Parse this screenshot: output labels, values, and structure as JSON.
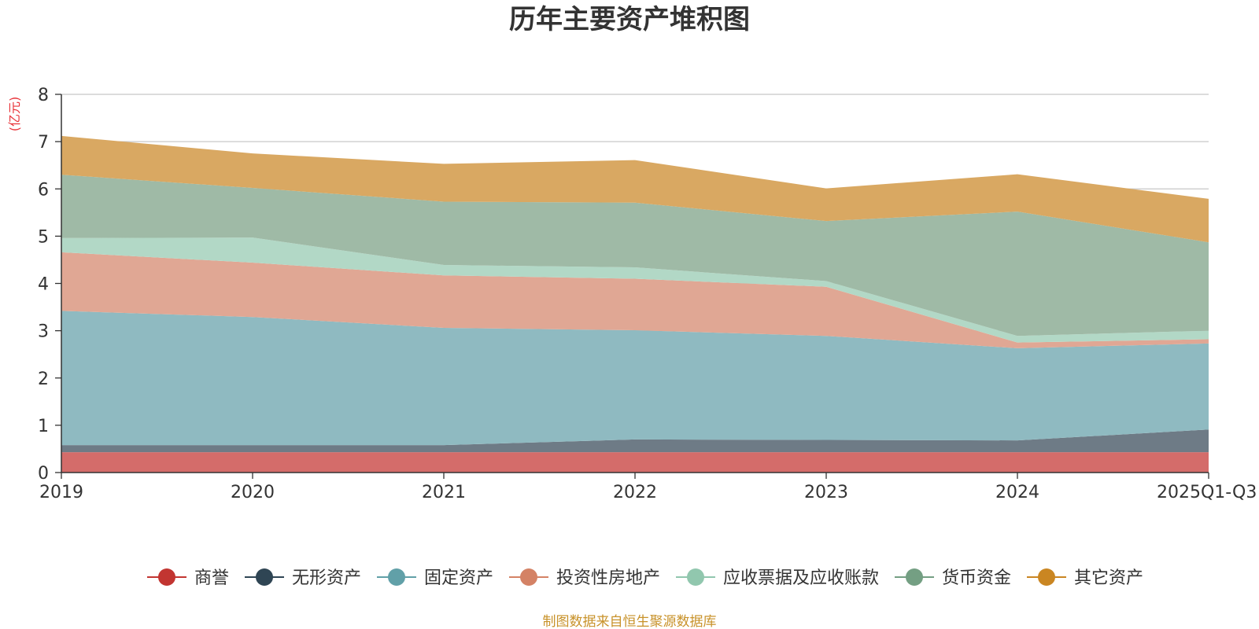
{
  "chart_data": {
    "type": "area",
    "stacked": true,
    "title": "历年主要资产堆积图",
    "unit_label": "(亿元)",
    "categories": [
      "2019",
      "2020",
      "2021",
      "2022",
      "2023",
      "2024",
      "2025Q1-Q3"
    ],
    "ylim": [
      0,
      8
    ],
    "yticks": [
      "0",
      "1",
      "2",
      "3",
      "4",
      "5",
      "6",
      "7",
      "8"
    ],
    "grid": true,
    "legend_position": "bottom",
    "series": [
      {
        "name": "商誉",
        "legend_color": "#c23531",
        "fill": "#d46c6a",
        "values": [
          0.43,
          0.43,
          0.43,
          0.43,
          0.43,
          0.43,
          0.43
        ]
      },
      {
        "name": "无形资产",
        "legend_color": "#2f4554",
        "fill": "#6e7b86",
        "values": [
          0.15,
          0.15,
          0.15,
          0.27,
          0.26,
          0.25,
          0.48
        ]
      },
      {
        "name": "固定资产",
        "legend_color": "#61a0a8",
        "fill": "#8fbac1",
        "values": [
          2.84,
          2.71,
          2.48,
          2.31,
          2.2,
          1.95,
          1.82
        ]
      },
      {
        "name": "投资性房地产",
        "legend_color": "#d48265",
        "fill": "#e0a794",
        "values": [
          1.24,
          1.15,
          1.11,
          1.09,
          1.04,
          0.12,
          0.09
        ]
      },
      {
        "name": "应收票据及应收账款",
        "legend_color": "#91c7ae",
        "fill": "#b2d8c6",
        "values": [
          0.3,
          0.53,
          0.22,
          0.24,
          0.12,
          0.14,
          0.18
        ]
      },
      {
        "name": "货币资金",
        "legend_color": "#749f83",
        "fill": "#9fbaa6",
        "values": [
          1.34,
          1.05,
          1.34,
          1.37,
          1.27,
          2.63,
          1.87
        ]
      },
      {
        "name": "其它资产",
        "legend_color": "#ca8622",
        "fill": "#d9a862",
        "values": [
          0.82,
          0.73,
          0.8,
          0.9,
          0.69,
          0.79,
          0.92
        ]
      }
    ],
    "source": "制图数据来自恒生聚源数据库"
  }
}
